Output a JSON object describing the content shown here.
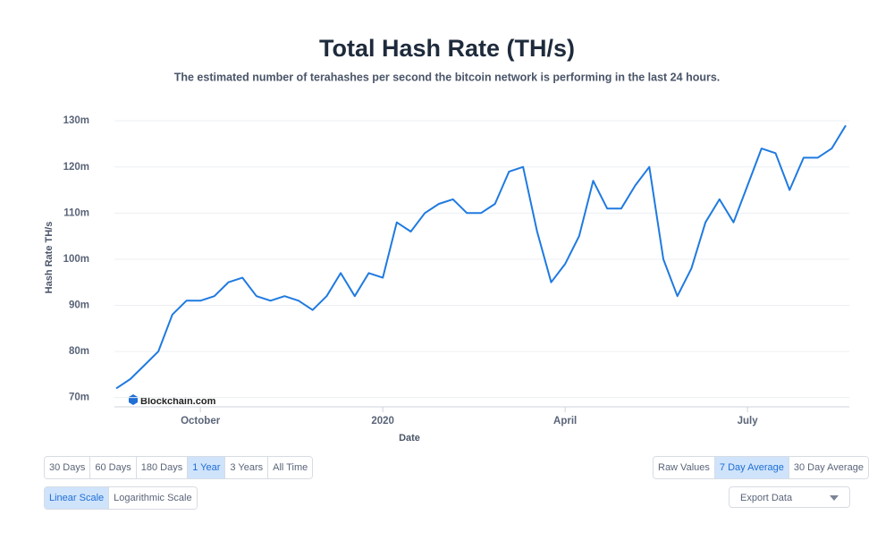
{
  "chart_data": {
    "type": "line",
    "title": "Total Hash Rate (TH/s)",
    "subtitle": "The estimated number of terahashes per second the bitcoin network is performing in the last 24 hours.",
    "y_label": "Hash Rate TH/s",
    "x_label": "Date",
    "watermark": "Blockchain.com",
    "categories": [
      null,
      null,
      null,
      null,
      null,
      null,
      "October",
      null,
      null,
      null,
      null,
      null,
      null,
      null,
      null,
      null,
      null,
      null,
      null,
      "2020",
      null,
      null,
      null,
      null,
      null,
      null,
      null,
      null,
      null,
      null,
      null,
      null,
      "April",
      null,
      null,
      null,
      null,
      null,
      null,
      null,
      null,
      null,
      null,
      null,
      null,
      "July",
      null,
      null,
      null,
      null,
      null,
      null,
      null
    ],
    "values": [
      72,
      74,
      77,
      80,
      88,
      91,
      91,
      92,
      95,
      96,
      92,
      91,
      92,
      91,
      89,
      92,
      97,
      92,
      97,
      96,
      108,
      106,
      110,
      112,
      113,
      110,
      110,
      112,
      119,
      120,
      106,
      95,
      99,
      105,
      117,
      111,
      111,
      116,
      120,
      100,
      92,
      98,
      108,
      113,
      108,
      116,
      124,
      123,
      115,
      122,
      122,
      124,
      129
    ],
    "color": "#1f7ae0",
    "ylim": [
      68,
      131
    ],
    "yticks": [
      {
        "value": 70,
        "label": "70m"
      },
      {
        "value": 80,
        "label": "80m"
      },
      {
        "value": 90,
        "label": "90m"
      },
      {
        "value": 100,
        "label": "100m"
      },
      {
        "value": 110,
        "label": "110m"
      },
      {
        "value": 120,
        "label": "120m"
      },
      {
        "value": 130,
        "label": "130m"
      }
    ],
    "grid": true
  },
  "controls": {
    "range_buttons": [
      "30 Days",
      "60 Days",
      "180 Days",
      "1 Year",
      "3 Years",
      "All Time"
    ],
    "range_selected": 3,
    "scale_buttons": [
      "Linear Scale",
      "Logarithmic Scale"
    ],
    "scale_selected": 0,
    "average_buttons": [
      "Raw Values",
      "7 Day Average",
      "30 Day Average"
    ],
    "average_selected": 1,
    "export": "Export Data"
  }
}
